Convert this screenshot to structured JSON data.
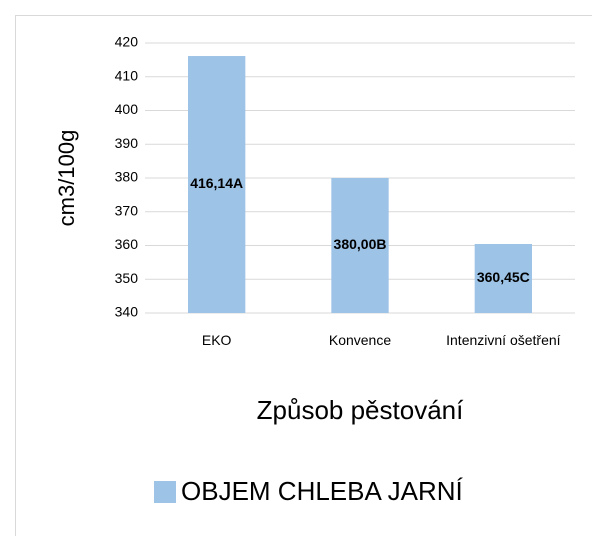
{
  "chart_data": {
    "type": "bar",
    "categories": [
      "EKO",
      "Konvence",
      "Intenzivní ošetření"
    ],
    "values": [
      416.14,
      380.0,
      360.45
    ],
    "value_labels": [
      "416,14A",
      "380,00B",
      "360,45C"
    ],
    "series_name": "OBJEM CHLEBA JARNÍ",
    "color": "#9dc3e6",
    "xlabel": "Způsob pěstování",
    "ylabel": "cm3/100g",
    "ylim": [
      340,
      420
    ],
    "yticks": [
      340,
      350,
      360,
      370,
      380,
      390,
      400,
      410,
      420
    ],
    "grid": true,
    "legend": "bottom"
  }
}
